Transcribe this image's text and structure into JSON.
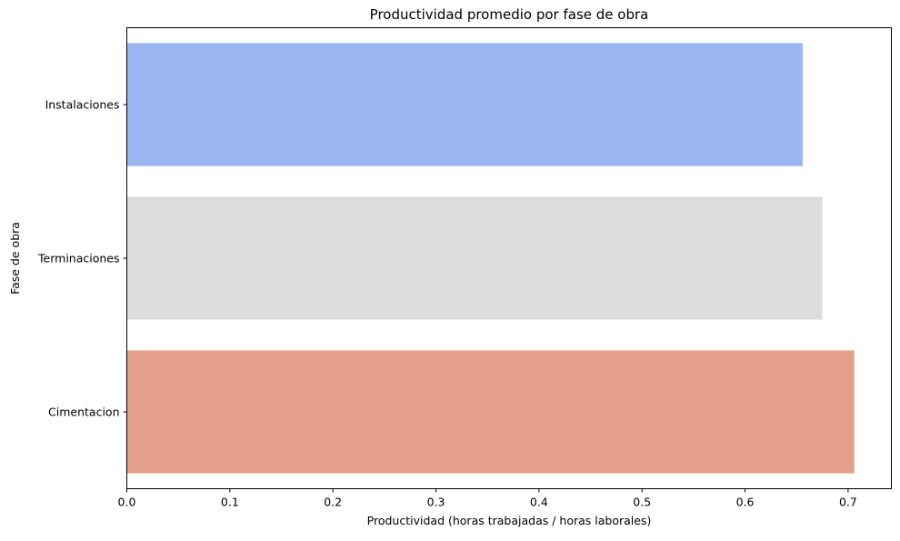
{
  "chart_data": {
    "type": "bar",
    "orientation": "horizontal",
    "title": "Productividad promedio por fase de obra",
    "xlabel": "Productividad (horas trabajadas / horas laborales)",
    "ylabel": "Fase de obra",
    "categories": [
      "Instalaciones",
      "Terminaciones",
      "Cimentacion"
    ],
    "values": [
      0.656,
      0.675,
      0.706
    ],
    "colors": [
      "#9ab5f0",
      "#dcdcdc",
      "#e4a08a"
    ],
    "xlim": [
      0,
      0.742
    ],
    "xticks": [
      {
        "value": 0.0,
        "label": "0.0"
      },
      {
        "value": 0.1,
        "label": "0.1"
      },
      {
        "value": 0.2,
        "label": "0.2"
      },
      {
        "value": 0.3,
        "label": "0.3"
      },
      {
        "value": 0.4,
        "label": "0.4"
      },
      {
        "value": 0.5,
        "label": "0.5"
      },
      {
        "value": 0.6,
        "label": "0.6"
      },
      {
        "value": 0.7,
        "label": "0.7"
      }
    ],
    "grid": false,
    "legend": "none"
  }
}
